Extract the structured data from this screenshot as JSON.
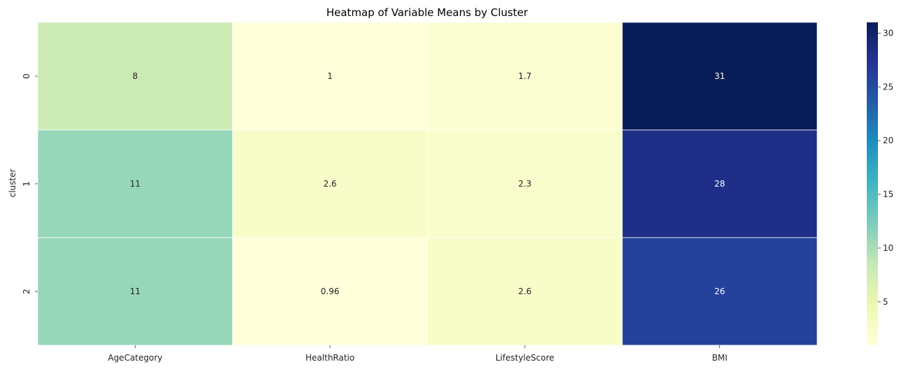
{
  "chart_data": {
    "type": "heatmap",
    "title": "Heatmap of Variable Means by Cluster",
    "xlabel": "",
    "ylabel": "cluster",
    "x_categories": [
      "AgeCategory",
      "HealthRatio",
      "LifestyleScore",
      "BMI"
    ],
    "y_categories": [
      "0",
      "1",
      "2"
    ],
    "values": [
      [
        8,
        1,
        1.7,
        31
      ],
      [
        11,
        2.6,
        2.3,
        28
      ],
      [
        11,
        0.96,
        2.6,
        26
      ]
    ],
    "annotations": [
      [
        "8",
        "1",
        "1.7",
        "31"
      ],
      [
        "11",
        "2.6",
        "2.3",
        "28"
      ],
      [
        "11",
        "0.96",
        "2.6",
        "26"
      ]
    ],
    "colormap": "YlGnBu",
    "color_range": [
      0.96,
      31
    ],
    "colorbar_ticks": [
      "5",
      "10",
      "15",
      "20",
      "25",
      "30"
    ],
    "cell_border_color": "#ffffff"
  }
}
